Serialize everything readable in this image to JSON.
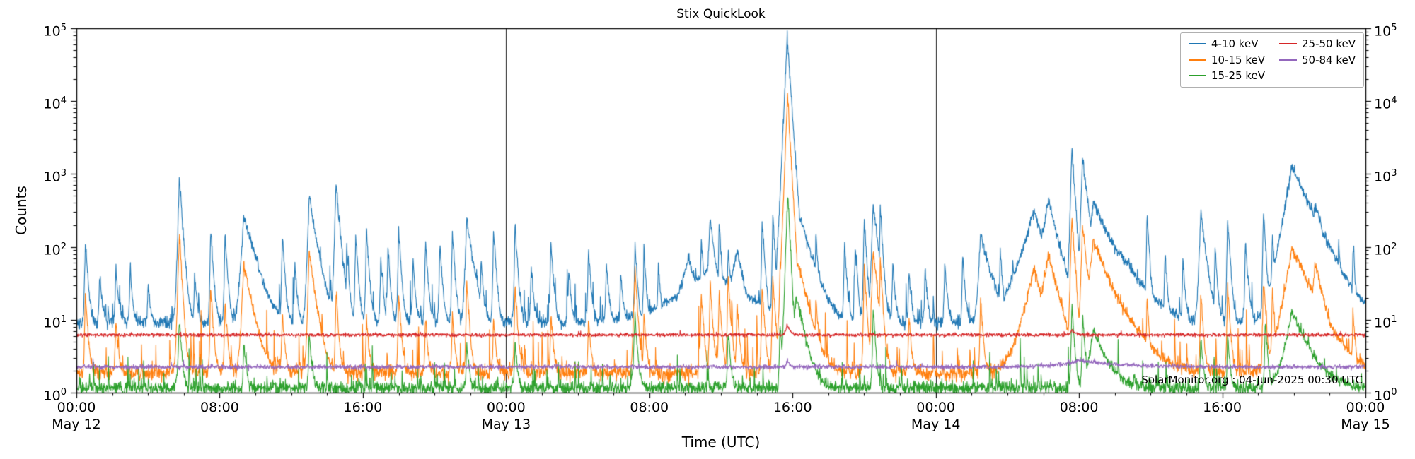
{
  "chart_data": {
    "type": "line",
    "title": "Stix QuickLook",
    "xlabel": "Time (UTC)",
    "ylabel": "Counts",
    "credit": "SolarMonitor.org : 04-Jun-2025 00:30 UTC",
    "xlim_hours": [
      0,
      72
    ],
    "ylog_range": [
      0,
      5
    ],
    "grid": false,
    "x_minor_step_hours": 2,
    "y_tick_exponents": [
      0,
      1,
      2,
      3,
      4,
      5
    ],
    "day_boundary_lines_hours": [
      24,
      48
    ],
    "x_major_ticks": [
      {
        "hours": 0,
        "label": "00:00",
        "day_label": "May 12"
      },
      {
        "hours": 8,
        "label": "08:00"
      },
      {
        "hours": 16,
        "label": "16:00"
      },
      {
        "hours": 24,
        "label": "00:00",
        "day_label": "May 13"
      },
      {
        "hours": 32,
        "label": "08:00"
      },
      {
        "hours": 40,
        "label": "16:00"
      },
      {
        "hours": 48,
        "label": "00:00",
        "day_label": "May 14"
      },
      {
        "hours": 56,
        "label": "08:00"
      },
      {
        "hours": 64,
        "label": "16:00"
      },
      {
        "hours": 72,
        "label": "00:00",
        "day_label": "May 15"
      }
    ],
    "legend": {
      "position": "upper-right",
      "columns": [
        [
          "4-10 keV",
          "10-15 keV",
          "15-25 keV"
        ],
        [
          "25-50 keV",
          "50-84 keV"
        ]
      ]
    },
    "series_encoding": "baseline is quiet-level counts; spikes are [hours_since_2025-05-12_00:00_UTC, peak_counts_above_baseline, rise_hours, decay_hours] read approximately from the log-scale plot",
    "series": [
      {
        "name": "4-10 keV",
        "color": "#1f77b4",
        "baseline": 9,
        "noise": 0.045,
        "texture_p": 0.05,
        "texture_amp": 0.9,
        "spikes": [
          [
            0.5,
            120
          ],
          [
            1.3,
            35
          ],
          [
            2.2,
            45
          ],
          [
            3.0,
            40
          ],
          [
            4.0,
            22
          ],
          [
            5.75,
            900,
            0.05,
            0.12
          ],
          [
            6.6,
            35
          ],
          [
            7.5,
            170
          ],
          [
            8.3,
            140
          ],
          [
            9.35,
            270,
            0.1,
            0.45
          ],
          [
            10.1,
            80
          ],
          [
            11.5,
            140
          ],
          [
            12.2,
            50
          ],
          [
            13.0,
            450,
            0.06,
            0.3
          ],
          [
            14.5,
            740,
            0.05,
            0.15
          ],
          [
            15.1,
            90
          ],
          [
            15.6,
            140
          ],
          [
            16.2,
            170
          ],
          [
            17.0,
            60
          ],
          [
            17.4,
            90
          ],
          [
            18.0,
            165
          ],
          [
            18.8,
            55
          ],
          [
            19.5,
            115
          ],
          [
            20.3,
            105
          ],
          [
            21.0,
            150
          ],
          [
            21.8,
            230,
            0.06,
            0.25
          ],
          [
            22.6,
            55
          ],
          [
            23.3,
            170
          ],
          [
            24.5,
            195
          ],
          [
            25.4,
            45
          ],
          [
            26.5,
            115
          ],
          [
            27.5,
            40
          ],
          [
            28.6,
            85
          ],
          [
            29.6,
            55
          ],
          [
            30.4,
            35
          ],
          [
            31.2,
            95
          ],
          [
            31.7,
            70
          ],
          [
            32.5,
            50
          ],
          [
            34.2,
            60,
            0.4,
            0.4
          ],
          [
            34.9,
            130
          ],
          [
            35.4,
            240,
            0.08,
            0.2
          ],
          [
            35.9,
            200
          ],
          [
            36.4,
            90
          ],
          [
            36.9,
            80,
            0.3,
            0.3
          ],
          [
            35.5,
            45,
            1.5,
            1.5
          ],
          [
            38.3,
            240
          ],
          [
            38.9,
            270
          ],
          [
            39.3,
            250
          ],
          [
            39.7,
            75000,
            0.08,
            0.12
          ],
          [
            40.4,
            250,
            0.2,
            0.5
          ],
          [
            41.3,
            140
          ],
          [
            42.9,
            100
          ],
          [
            43.5,
            85
          ],
          [
            44.0,
            240
          ],
          [
            44.5,
            370,
            0.06,
            0.2
          ],
          [
            44.9,
            340
          ],
          [
            45.6,
            55
          ],
          [
            46.5,
            40
          ],
          [
            47.4,
            45
          ],
          [
            48.5,
            55
          ],
          [
            49.5,
            65
          ],
          [
            50.5,
            145,
            0.08,
            0.4
          ],
          [
            51.6,
            85
          ],
          [
            52.3,
            55
          ],
          [
            53.5,
            300,
            0.5,
            0.5
          ],
          [
            54.3,
            450,
            0.3,
            0.4
          ],
          [
            55.6,
            2200,
            0.05,
            0.12
          ],
          [
            56.2,
            1700,
            0.06,
            0.2
          ],
          [
            56.8,
            400,
            0.2,
            0.8
          ],
          [
            58.2,
            80,
            0.5,
            1.0
          ],
          [
            59.8,
            290
          ],
          [
            60.8,
            75
          ],
          [
            61.8,
            55
          ],
          [
            62.8,
            300,
            0.06,
            0.2
          ],
          [
            63.6,
            85
          ],
          [
            64.3,
            250
          ],
          [
            65.3,
            115
          ],
          [
            66.3,
            300
          ],
          [
            66.8,
            150
          ],
          [
            67.9,
            1250,
            0.3,
            0.8
          ],
          [
            69.2,
            350,
            0.3,
            0.5
          ],
          [
            70.5,
            120
          ],
          [
            71.3,
            90
          ]
        ]
      },
      {
        "name": "10-15 keV",
        "color": "#ff7f0e",
        "baseline": 1.85,
        "noise": 0.05,
        "texture_p": 0.04,
        "texture_amp": 1.4,
        "spikes": [
          [
            0.5,
            22
          ],
          [
            2.2,
            8
          ],
          [
            5.75,
            150,
            0.05,
            0.1
          ],
          [
            7.5,
            28
          ],
          [
            8.3,
            16
          ],
          [
            9.35,
            55,
            0.08,
            0.35
          ],
          [
            11.5,
            11
          ],
          [
            13.0,
            80,
            0.05,
            0.25
          ],
          [
            14.5,
            22
          ],
          [
            16.2,
            9
          ],
          [
            18.0,
            22
          ],
          [
            19.5,
            8
          ],
          [
            21.0,
            10
          ],
          [
            21.8,
            33
          ],
          [
            23.3,
            9
          ],
          [
            24.5,
            28
          ],
          [
            26.5,
            11
          ],
          [
            28.6,
            8
          ],
          [
            31.2,
            48,
            0.05,
            0.1
          ],
          [
            31.7,
            10
          ],
          [
            34.9,
            22
          ],
          [
            35.4,
            30
          ],
          [
            35.9,
            24
          ],
          [
            36.4,
            40
          ],
          [
            36.9,
            16
          ],
          [
            38.3,
            28
          ],
          [
            38.9,
            38
          ],
          [
            39.3,
            60
          ],
          [
            39.72,
            12000,
            0.07,
            0.1
          ],
          [
            40.3,
            60,
            0.2,
            0.4
          ],
          [
            41.3,
            18
          ],
          [
            44.0,
            55
          ],
          [
            44.5,
            90,
            0.05,
            0.18
          ],
          [
            44.9,
            65
          ],
          [
            46.5,
            9
          ],
          [
            50.5,
            18
          ],
          [
            53.5,
            50,
            0.4,
            0.4
          ],
          [
            54.3,
            80,
            0.3,
            0.4
          ],
          [
            55.6,
            250,
            0.05,
            0.12
          ],
          [
            56.2,
            200,
            0.06,
            0.18
          ],
          [
            56.8,
            120,
            0.2,
            0.7
          ],
          [
            58.2,
            18,
            0.5,
            0.9
          ],
          [
            59.8,
            18
          ],
          [
            62.8,
            23
          ],
          [
            64.3,
            28
          ],
          [
            66.3,
            38
          ],
          [
            66.8,
            25
          ],
          [
            67.9,
            95,
            0.3,
            0.8
          ],
          [
            69.2,
            55,
            0.2,
            0.4
          ],
          [
            71.3,
            11
          ]
        ]
      },
      {
        "name": "15-25 keV",
        "color": "#2ca02c",
        "baseline": 1.15,
        "noise": 0.045,
        "texture_p": 0.04,
        "texture_amp": 0.6,
        "spikes": [
          [
            5.75,
            9,
            0.05,
            0.1
          ],
          [
            9.35,
            4
          ],
          [
            13.0,
            6
          ],
          [
            21.8,
            4
          ],
          [
            24.5,
            4
          ],
          [
            31.2,
            11,
            0.05,
            0.1
          ],
          [
            36.4,
            6
          ],
          [
            39.3,
            8
          ],
          [
            39.73,
            550,
            0.06,
            0.09
          ],
          [
            40.2,
            20,
            0.15,
            0.35
          ],
          [
            44.5,
            13
          ],
          [
            55.6,
            16
          ],
          [
            56.2,
            11
          ],
          [
            56.8,
            6,
            0.2,
            0.6
          ],
          [
            62.8,
            5
          ],
          [
            64.3,
            5
          ],
          [
            66.4,
            8
          ],
          [
            67.9,
            12,
            0.3,
            0.7
          ]
        ]
      },
      {
        "name": "25-50 keV",
        "color": "#d62728",
        "baseline": 6.2,
        "noise": 0.012,
        "texture_p": 0.01,
        "texture_amp": 0.05,
        "spikes": [
          [
            39.7,
            2.5,
            0.08,
            0.15
          ],
          [
            55.6,
            1.0,
            0.1,
            0.2
          ]
        ]
      },
      {
        "name": "50-84 keV",
        "color": "#9467bd",
        "baseline": 2.25,
        "noise": 0.015,
        "texture_p": 0.01,
        "texture_amp": 0.06,
        "spikes": [
          [
            39.72,
            0.6,
            0.05,
            0.1
          ],
          [
            56.0,
            0.5,
            1.2,
            2.2
          ]
        ]
      }
    ]
  }
}
